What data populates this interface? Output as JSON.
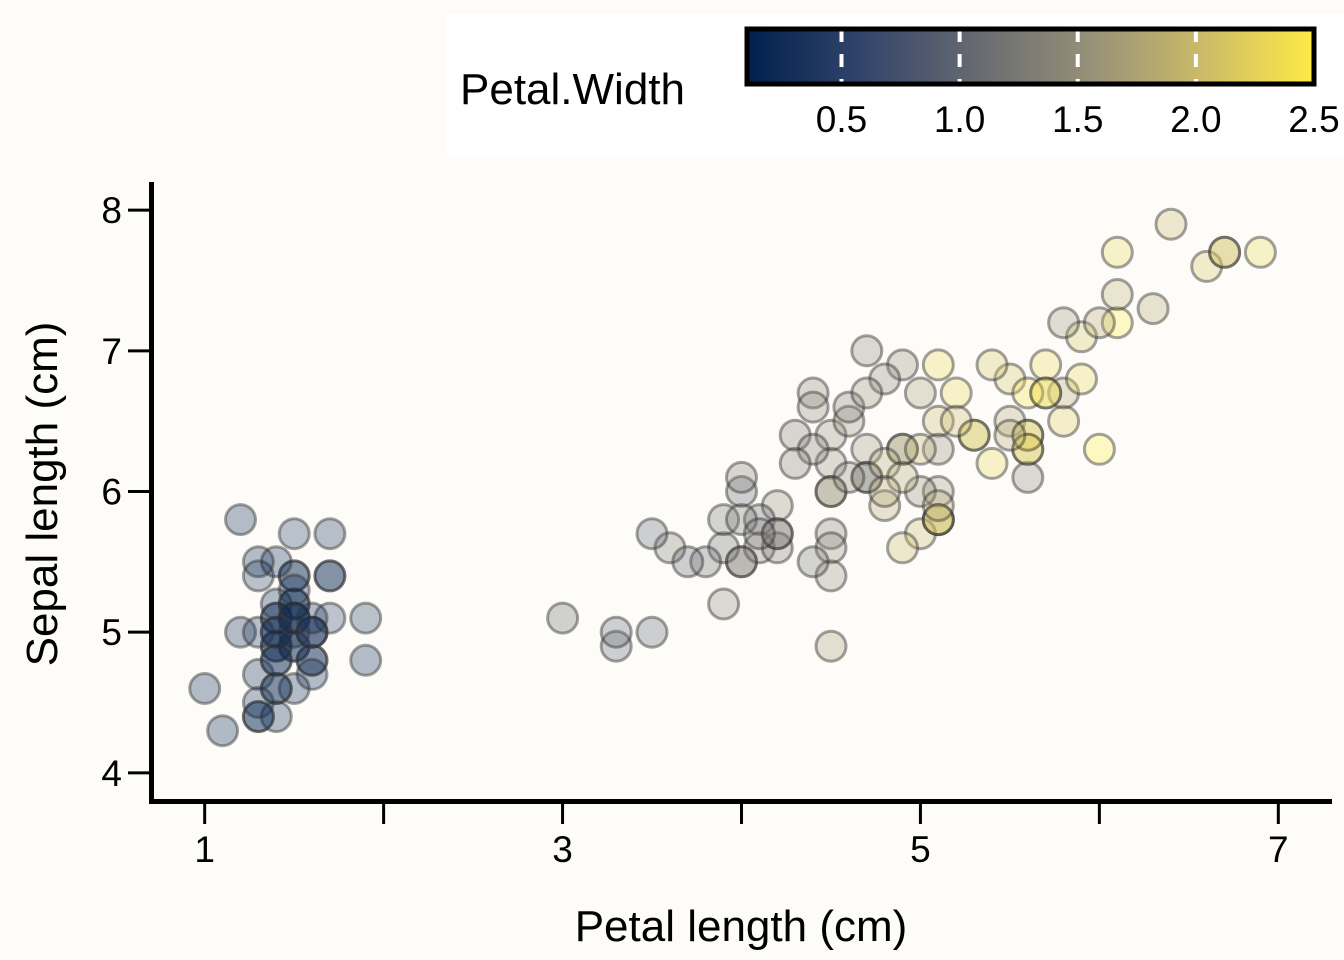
{
  "chart_data": {
    "type": "scatter",
    "xlabel": "Petal length (cm)",
    "ylabel": "Sepal length (cm)",
    "xlim": [
      0.7,
      7.3
    ],
    "ylim": [
      3.8,
      8.2
    ],
    "xticks": [
      1,
      3,
      5,
      7
    ],
    "xticks_minor": [
      2,
      4,
      6
    ],
    "yticks": [
      4,
      5,
      6,
      7,
      8
    ],
    "grid": false,
    "colorbar": {
      "title": "Petal.Width",
      "range": [
        0.1,
        2.5
      ],
      "ticks": [
        0.5,
        1.0,
        1.5,
        2.0,
        2.5
      ],
      "tick_labels": [
        "0.5",
        "1.0",
        "1.5",
        "2.0",
        "2.5"
      ],
      "colors": [
        "#00204d",
        "#31446b",
        "#666970",
        "#958f78",
        "#cbba69",
        "#ffea46"
      ],
      "placement": "top-right"
    },
    "point_style": {
      "fill_opacity": 0.3,
      "stroke": "#333333",
      "stroke_opacity": 0.45
    },
    "points": [
      [
        1.4,
        5.1,
        0.2
      ],
      [
        1.4,
        4.9,
        0.2
      ],
      [
        1.3,
        4.7,
        0.2
      ],
      [
        1.5,
        4.6,
        0.2
      ],
      [
        1.4,
        5.0,
        0.2
      ],
      [
        1.7,
        5.4,
        0.4
      ],
      [
        1.4,
        4.6,
        0.3
      ],
      [
        1.5,
        5.0,
        0.2
      ],
      [
        1.4,
        4.4,
        0.2
      ],
      [
        1.5,
        4.9,
        0.1
      ],
      [
        1.5,
        5.4,
        0.2
      ],
      [
        1.6,
        4.8,
        0.2
      ],
      [
        1.4,
        4.8,
        0.1
      ],
      [
        1.1,
        4.3,
        0.1
      ],
      [
        1.2,
        5.8,
        0.2
      ],
      [
        1.5,
        5.7,
        0.4
      ],
      [
        1.3,
        5.4,
        0.4
      ],
      [
        1.4,
        5.1,
        0.3
      ],
      [
        1.7,
        5.7,
        0.3
      ],
      [
        1.5,
        5.1,
        0.3
      ],
      [
        1.7,
        5.4,
        0.2
      ],
      [
        1.5,
        5.1,
        0.4
      ],
      [
        1.0,
        4.6,
        0.2
      ],
      [
        1.7,
        5.1,
        0.5
      ],
      [
        1.9,
        4.8,
        0.2
      ],
      [
        1.6,
        5.0,
        0.2
      ],
      [
        1.6,
        5.0,
        0.4
      ],
      [
        1.5,
        5.2,
        0.2
      ],
      [
        1.4,
        5.2,
        0.2
      ],
      [
        1.6,
        4.7,
        0.2
      ],
      [
        1.6,
        4.8,
        0.2
      ],
      [
        1.5,
        5.4,
        0.4
      ],
      [
        1.5,
        5.2,
        0.1
      ],
      [
        1.4,
        5.5,
        0.2
      ],
      [
        1.5,
        4.9,
        0.2
      ],
      [
        1.2,
        5.0,
        0.2
      ],
      [
        1.3,
        5.5,
        0.2
      ],
      [
        1.4,
        4.9,
        0.1
      ],
      [
        1.3,
        4.4,
        0.2
      ],
      [
        1.5,
        5.1,
        0.2
      ],
      [
        1.3,
        5.0,
        0.3
      ],
      [
        1.3,
        4.5,
        0.3
      ],
      [
        1.3,
        4.4,
        0.2
      ],
      [
        1.6,
        5.0,
        0.6
      ],
      [
        1.9,
        5.1,
        0.4
      ],
      [
        1.4,
        4.8,
        0.3
      ],
      [
        1.6,
        5.1,
        0.2
      ],
      [
        1.4,
        4.6,
        0.2
      ],
      [
        1.5,
        5.3,
        0.2
      ],
      [
        1.4,
        5.0,
        0.2
      ],
      [
        4.7,
        7.0,
        1.4
      ],
      [
        4.5,
        6.4,
        1.5
      ],
      [
        4.9,
        6.9,
        1.5
      ],
      [
        4.0,
        5.5,
        1.3
      ],
      [
        4.6,
        6.5,
        1.5
      ],
      [
        4.5,
        5.7,
        1.3
      ],
      [
        4.7,
        6.3,
        1.6
      ],
      [
        3.3,
        4.9,
        1.0
      ],
      [
        4.6,
        6.6,
        1.3
      ],
      [
        3.9,
        5.2,
        1.4
      ],
      [
        3.5,
        5.0,
        1.0
      ],
      [
        4.2,
        5.9,
        1.5
      ],
      [
        4.0,
        6.0,
        1.0
      ],
      [
        4.7,
        6.1,
        1.4
      ],
      [
        3.6,
        5.6,
        1.3
      ],
      [
        4.4,
        6.7,
        1.4
      ],
      [
        4.5,
        5.6,
        1.5
      ],
      [
        4.1,
        5.8,
        1.0
      ],
      [
        4.5,
        6.2,
        1.5
      ],
      [
        3.9,
        5.6,
        1.1
      ],
      [
        4.8,
        5.9,
        1.8
      ],
      [
        4.0,
        6.1,
        1.3
      ],
      [
        4.9,
        6.3,
        1.5
      ],
      [
        4.7,
        6.1,
        1.2
      ],
      [
        4.3,
        6.4,
        1.3
      ],
      [
        4.4,
        6.6,
        1.4
      ],
      [
        4.8,
        6.8,
        1.4
      ],
      [
        5.0,
        6.7,
        1.7
      ],
      [
        4.5,
        6.0,
        1.5
      ],
      [
        3.5,
        5.7,
        1.0
      ],
      [
        3.8,
        5.5,
        1.1
      ],
      [
        3.7,
        5.5,
        1.0
      ],
      [
        3.9,
        5.8,
        1.2
      ],
      [
        5.1,
        6.0,
        1.6
      ],
      [
        4.5,
        5.4,
        1.5
      ],
      [
        4.5,
        6.0,
        1.6
      ],
      [
        4.7,
        6.7,
        1.5
      ],
      [
        4.4,
        6.3,
        1.3
      ],
      [
        4.1,
        5.6,
        1.3
      ],
      [
        4.0,
        5.5,
        1.3
      ],
      [
        4.4,
        5.5,
        1.2
      ],
      [
        4.6,
        6.1,
        1.4
      ],
      [
        4.0,
        5.8,
        1.2
      ],
      [
        3.3,
        5.0,
        1.0
      ],
      [
        4.2,
        5.6,
        1.3
      ],
      [
        4.2,
        5.7,
        1.2
      ],
      [
        4.2,
        5.7,
        1.3
      ],
      [
        4.3,
        6.2,
        1.3
      ],
      [
        3.0,
        5.1,
        1.1
      ],
      [
        4.1,
        5.7,
        1.3
      ],
      [
        6.0,
        6.3,
        2.5
      ],
      [
        5.1,
        5.8,
        1.9
      ],
      [
        5.9,
        7.1,
        2.1
      ],
      [
        5.6,
        6.3,
        1.8
      ],
      [
        5.8,
        6.5,
        2.2
      ],
      [
        6.6,
        7.6,
        2.1
      ],
      [
        4.5,
        4.9,
        1.7
      ],
      [
        6.3,
        7.3,
        1.8
      ],
      [
        5.8,
        6.7,
        1.8
      ],
      [
        6.1,
        7.2,
        2.5
      ],
      [
        5.1,
        6.5,
        2.0
      ],
      [
        5.3,
        6.4,
        1.9
      ],
      [
        5.5,
        6.8,
        2.1
      ],
      [
        5.0,
        5.7,
        2.0
      ],
      [
        5.1,
        5.8,
        2.4
      ],
      [
        5.3,
        6.4,
        2.3
      ],
      [
        5.5,
        6.5,
        1.8
      ],
      [
        6.7,
        7.7,
        2.2
      ],
      [
        6.9,
        7.7,
        2.3
      ],
      [
        5.0,
        6.0,
        1.5
      ],
      [
        5.7,
        6.9,
        2.3
      ],
      [
        4.9,
        5.6,
        2.0
      ],
      [
        6.7,
        7.7,
        2.0
      ],
      [
        4.9,
        6.3,
        1.8
      ],
      [
        5.7,
        6.7,
        2.1
      ],
      [
        6.0,
        7.2,
        1.8
      ],
      [
        4.8,
        6.2,
        1.8
      ],
      [
        4.9,
        6.1,
        1.8
      ],
      [
        5.6,
        6.4,
        2.1
      ],
      [
        5.8,
        7.2,
        1.6
      ],
      [
        6.1,
        7.4,
        1.9
      ],
      [
        6.4,
        7.9,
        2.0
      ],
      [
        5.6,
        6.4,
        2.2
      ],
      [
        5.1,
        6.3,
        1.5
      ],
      [
        5.6,
        6.1,
        1.4
      ],
      [
        6.1,
        7.7,
        2.3
      ],
      [
        5.6,
        6.3,
        2.4
      ],
      [
        5.5,
        6.4,
        1.8
      ],
      [
        4.8,
        6.0,
        1.8
      ],
      [
        5.4,
        6.9,
        2.1
      ],
      [
        5.6,
        6.7,
        2.4
      ],
      [
        5.1,
        6.9,
        2.3
      ],
      [
        5.1,
        5.8,
        1.9
      ],
      [
        5.9,
        6.8,
        2.3
      ],
      [
        5.7,
        6.7,
        2.5
      ],
      [
        5.2,
        6.7,
        2.3
      ],
      [
        5.0,
        6.3,
        1.9
      ],
      [
        5.2,
        6.5,
        2.0
      ],
      [
        5.4,
        6.2,
        2.3
      ],
      [
        5.1,
        5.9,
        1.8
      ]
    ]
  }
}
